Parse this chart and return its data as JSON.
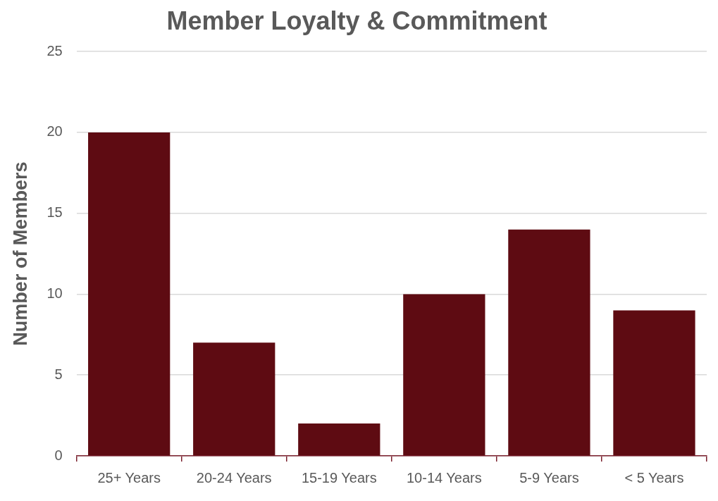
{
  "chart_data": {
    "type": "bar",
    "title": "Member Loyalty & Commitment",
    "ylabel": "Number of Members",
    "categories": [
      "25+ Years",
      "20-24 Years",
      "15-19 Years",
      "10-14 Years",
      "5-9 Years",
      "< 5 Years"
    ],
    "values": [
      20,
      7,
      2,
      10,
      14,
      9
    ],
    "color": "#5e0b12",
    "ylim": [
      0,
      25
    ],
    "yticks": [
      0,
      5,
      10,
      15,
      20,
      25
    ],
    "grid": "y",
    "legend": false
  }
}
